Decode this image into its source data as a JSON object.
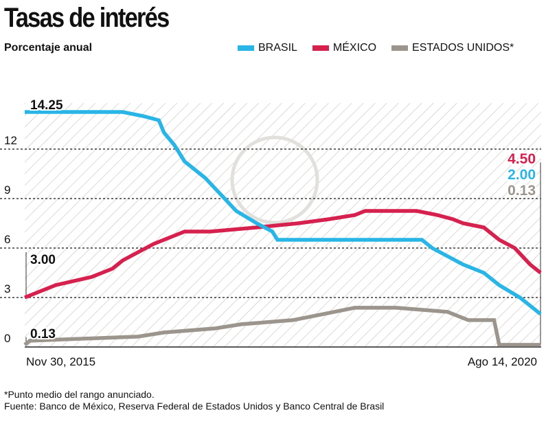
{
  "title": "Tasas de interés",
  "subtitle": "Porcentaje anual",
  "legend": [
    {
      "label": "BRASIL",
      "color": "#29b6e6"
    },
    {
      "label": "MÉXICO",
      "color": "#d6214e"
    },
    {
      "label": "ESTADOS UNIDOS*",
      "color": "#9b958d"
    }
  ],
  "footer": {
    "note": "*Punto medio del rango anunciado.",
    "source": "Fuente: Banco de México, Reserva Federal de Estados Unidos y Banco Central de Brasil"
  },
  "chart_data": {
    "type": "line",
    "step": true,
    "title": "Tasas de interés",
    "ylabel": "Porcentaje anual",
    "xlabel": "",
    "ylim": [
      0,
      15
    ],
    "xlim": [
      0,
      100
    ],
    "yticks": [
      "0",
      "3",
      "6",
      "9",
      "12"
    ],
    "ytick_values": [
      0,
      3,
      6,
      9,
      12
    ],
    "xtick_labels": [
      "Nov 30, 2015",
      "Ago 14, 2020"
    ],
    "start_labels": [
      {
        "series": "Brasil",
        "text": "14.25",
        "value": 14.25
      },
      {
        "series": "México",
        "text": "3.00",
        "value": 3.0
      },
      {
        "series": "Estados Unidos",
        "text": "0.13",
        "value": 0.13
      }
    ],
    "end_labels": [
      {
        "series": "México",
        "text": "4.50",
        "value": 4.5
      },
      {
        "series": "Brasil",
        "text": "2.00",
        "value": 2.0
      },
      {
        "series": "Estados Unidos",
        "text": "0.13",
        "value": 0.13
      }
    ],
    "series": [
      {
        "name": "Brasil",
        "color": "#29b6e6",
        "x": [
          0,
          19,
          23,
          26,
          27,
          29,
          31,
          35,
          38,
          41,
          45,
          48,
          49,
          77,
          79,
          82,
          85,
          89,
          92,
          96,
          100
        ],
        "y": [
          14.25,
          14.25,
          14.0,
          13.75,
          13.0,
          12.25,
          11.25,
          10.25,
          9.25,
          8.25,
          7.5,
          7.0,
          6.5,
          6.5,
          6.0,
          5.5,
          5.0,
          4.5,
          3.75,
          3.0,
          2.0
        ]
      },
      {
        "name": "México",
        "color": "#d6214e",
        "x": [
          0,
          2,
          6,
          13,
          17,
          19,
          22,
          25,
          29,
          31,
          36,
          45,
          53,
          59,
          64,
          66,
          76,
          80,
          83,
          85,
          89,
          92,
          95,
          98,
          100
        ],
        "y": [
          3.0,
          3.25,
          3.75,
          4.25,
          4.75,
          5.25,
          5.75,
          6.25,
          6.75,
          7.0,
          7.0,
          7.25,
          7.5,
          7.75,
          8.0,
          8.25,
          8.25,
          8.0,
          7.75,
          7.5,
          7.25,
          6.5,
          6.0,
          5.0,
          4.5
        ]
      },
      {
        "name": "Estados Unidos",
        "color": "#9b958d",
        "x": [
          0,
          1,
          22,
          27,
          37,
          42,
          52,
          56,
          60,
          64,
          68,
          72,
          82,
          84,
          86,
          91,
          92,
          100
        ],
        "y": [
          0.13,
          0.38,
          0.63,
          0.88,
          1.13,
          1.38,
          1.63,
          1.88,
          2.13,
          2.38,
          2.38,
          2.38,
          2.13,
          1.88,
          1.63,
          1.63,
          0.13,
          0.13
        ]
      }
    ]
  }
}
